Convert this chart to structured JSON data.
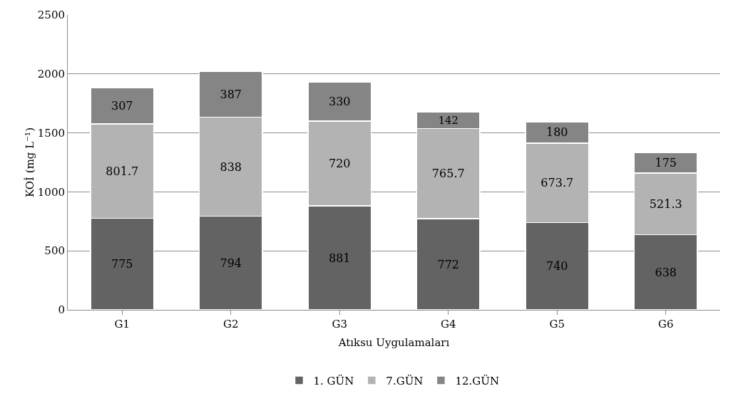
{
  "chart_data": {
    "type": "bar",
    "stacked": true,
    "xlabel": "Atıksu Uygulamaları",
    "ylabel": "KOİ (mg L⁻¹)",
    "categories": [
      "G1",
      "G2",
      "G3",
      "G4",
      "G5",
      "G6"
    ],
    "series": [
      {
        "name": "1. GÜN",
        "color": "#636363",
        "values": [
          775,
          794,
          881,
          772,
          740,
          638
        ]
      },
      {
        "name": "7.GÜN",
        "color": "#b3b3b3",
        "values": [
          801.7,
          838,
          720,
          765.7,
          673.7,
          521.3
        ]
      },
      {
        "name": "12.GÜN",
        "color": "#858585",
        "values": [
          307,
          387,
          330,
          142,
          180,
          175
        ]
      }
    ],
    "ylim": [
      0,
      2500
    ],
    "yticks": [
      0,
      500,
      1000,
      1500,
      2000,
      2500
    ],
    "grid": "y",
    "legend": "bottom",
    "data_labels": true
  }
}
